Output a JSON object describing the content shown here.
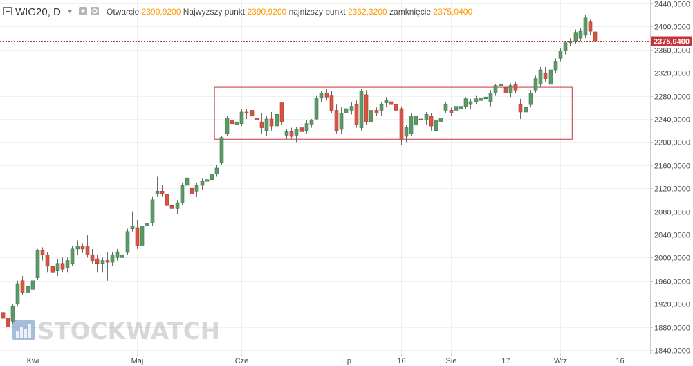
{
  "header": {
    "symbol": "WIG20",
    "interval": "D",
    "open_label": "Otwarcie",
    "open_value": "2390,9200",
    "high_label": "Najwyzszy punkt",
    "high_value": "2390,9200",
    "low_label": "najnizszy punkt",
    "low_value": "2362,3200",
    "close_label": "zamknięcie",
    "close_value": "2375,0400"
  },
  "last_price_label": "2375,0400",
  "watermark": "STOCKWATCH",
  "colors": {
    "up": "#5b9a68",
    "down": "#d75442",
    "wick": "#6b6b6b",
    "box": "#c8343c",
    "last_price": "#c8343c",
    "grid": "#eef0f2",
    "accent_values": "#ff9a00"
  },
  "chart_data": {
    "type": "candlestick",
    "title": "",
    "xlabel": "",
    "ylabel": "",
    "ylim": [
      1840,
      2440
    ],
    "grid": true,
    "y_ticks": [
      1840,
      1880,
      1920,
      1960,
      2000,
      2040,
      2080,
      2120,
      2160,
      2200,
      2240,
      2280,
      2320,
      2360,
      2400,
      2440
    ],
    "y_tick_labels": [
      "1840,0000",
      "1880,0000",
      "1920,0000",
      "1960,0000",
      "2000,0000",
      "2040,0000",
      "2080,0000",
      "2120,0000",
      "2160,0000",
      "2200,0000",
      "2240,0000",
      "2280,0000",
      "2320,0000",
      "2360,0000",
      "2400,0000",
      "2440,0000"
    ],
    "x_ticks": [
      {
        "label": "Kwi",
        "index": 6
      },
      {
        "label": "Maj",
        "index": 27
      },
      {
        "label": "Cze",
        "index": 48
      },
      {
        "label": "Lip",
        "index": 69
      },
      {
        "label": "16",
        "index": 80
      },
      {
        "label": "Sie",
        "index": 90
      },
      {
        "label": "17",
        "index": 101
      },
      {
        "label": "Wrz",
        "index": 112
      },
      {
        "label": "16",
        "index": 124
      }
    ],
    "last_price": 2375.04,
    "range_box": {
      "start_index": 43,
      "end_index": 114,
      "low": 2205,
      "high": 2295
    },
    "candles": [
      {
        "o": 1905,
        "h": 1915,
        "l": 1880,
        "c": 1895
      },
      {
        "o": 1895,
        "h": 1905,
        "l": 1870,
        "c": 1880
      },
      {
        "o": 1890,
        "h": 1920,
        "l": 1885,
        "c": 1915
      },
      {
        "o": 1920,
        "h": 1960,
        "l": 1915,
        "c": 1955
      },
      {
        "o": 1960,
        "h": 1968,
        "l": 1935,
        "c": 1940
      },
      {
        "o": 1940,
        "h": 1955,
        "l": 1930,
        "c": 1950
      },
      {
        "o": 1945,
        "h": 1965,
        "l": 1940,
        "c": 1960
      },
      {
        "o": 1965,
        "h": 2015,
        "l": 1962,
        "c": 2012
      },
      {
        "o": 2012,
        "h": 2018,
        "l": 1995,
        "c": 2005
      },
      {
        "o": 2005,
        "h": 2010,
        "l": 1975,
        "c": 1985
      },
      {
        "o": 1985,
        "h": 1995,
        "l": 1970,
        "c": 1975
      },
      {
        "o": 1978,
        "h": 1998,
        "l": 1968,
        "c": 1990
      },
      {
        "o": 1990,
        "h": 2000,
        "l": 1975,
        "c": 1980
      },
      {
        "o": 1982,
        "h": 2000,
        "l": 1975,
        "c": 1995
      },
      {
        "o": 1990,
        "h": 2020,
        "l": 1985,
        "c": 2015
      },
      {
        "o": 2015,
        "h": 2030,
        "l": 2005,
        "c": 2020
      },
      {
        "o": 2020,
        "h": 2025,
        "l": 2008,
        "c": 2015
      },
      {
        "o": 2020,
        "h": 2040,
        "l": 2000,
        "c": 2005
      },
      {
        "o": 2005,
        "h": 2015,
        "l": 1990,
        "c": 1995
      },
      {
        "o": 1998,
        "h": 2005,
        "l": 1975,
        "c": 1990
      },
      {
        "o": 1990,
        "h": 2000,
        "l": 1975,
        "c": 1995
      },
      {
        "o": 1995,
        "h": 2010,
        "l": 1960,
        "c": 1992
      },
      {
        "o": 1992,
        "h": 2010,
        "l": 1985,
        "c": 2005
      },
      {
        "o": 2000,
        "h": 2015,
        "l": 1995,
        "c": 2010
      },
      {
        "o": 2000,
        "h": 2015,
        "l": 1995,
        "c": 2005
      },
      {
        "o": 2010,
        "h": 2050,
        "l": 2005,
        "c": 2045
      },
      {
        "o": 2050,
        "h": 2080,
        "l": 2045,
        "c": 2055
      },
      {
        "o": 2052,
        "h": 2065,
        "l": 2015,
        "c": 2020
      },
      {
        "o": 2020,
        "h": 2060,
        "l": 2015,
        "c": 2055
      },
      {
        "o": 2055,
        "h": 2070,
        "l": 2045,
        "c": 2060
      },
      {
        "o": 2060,
        "h": 2105,
        "l": 2055,
        "c": 2100
      },
      {
        "o": 2110,
        "h": 2140,
        "l": 2105,
        "c": 2115
      },
      {
        "o": 2115,
        "h": 2125,
        "l": 2105,
        "c": 2110
      },
      {
        "o": 2110,
        "h": 2120,
        "l": 2085,
        "c": 2090
      },
      {
        "o": 2090,
        "h": 2100,
        "l": 2050,
        "c": 2085
      },
      {
        "o": 2085,
        "h": 2100,
        "l": 2075,
        "c": 2095
      },
      {
        "o": 2095,
        "h": 2130,
        "l": 2090,
        "c": 2125
      },
      {
        "o": 2125,
        "h": 2155,
        "l": 2118,
        "c": 2138
      },
      {
        "o": 2120,
        "h": 2130,
        "l": 2095,
        "c": 2110
      },
      {
        "o": 2115,
        "h": 2130,
        "l": 2105,
        "c": 2125
      },
      {
        "o": 2125,
        "h": 2138,
        "l": 2118,
        "c": 2132
      },
      {
        "o": 2132,
        "h": 2142,
        "l": 2128,
        "c": 2135
      },
      {
        "o": 2135,
        "h": 2150,
        "l": 2125,
        "c": 2145
      },
      {
        "o": 2145,
        "h": 2160,
        "l": 2140,
        "c": 2155
      },
      {
        "o": 2165,
        "h": 2210,
        "l": 2160,
        "c": 2208
      },
      {
        "o": 2215,
        "h": 2245,
        "l": 2210,
        "c": 2242
      },
      {
        "o": 2238,
        "h": 2250,
        "l": 2228,
        "c": 2232
      },
      {
        "o": 2230,
        "h": 2262,
        "l": 2228,
        "c": 2235
      },
      {
        "o": 2232,
        "h": 2258,
        "l": 2228,
        "c": 2252
      },
      {
        "o": 2252,
        "h": 2258,
        "l": 2240,
        "c": 2250
      },
      {
        "o": 2255,
        "h": 2272,
        "l": 2240,
        "c": 2245
      },
      {
        "o": 2242,
        "h": 2252,
        "l": 2230,
        "c": 2238
      },
      {
        "o": 2235,
        "h": 2250,
        "l": 2215,
        "c": 2225
      },
      {
        "o": 2220,
        "h": 2245,
        "l": 2210,
        "c": 2240
      },
      {
        "o": 2240,
        "h": 2252,
        "l": 2220,
        "c": 2228
      },
      {
        "o": 2228,
        "h": 2252,
        "l": 2222,
        "c": 2248
      },
      {
        "o": 2268,
        "h": 2270,
        "l": 2230,
        "c": 2235
      },
      {
        "o": 2212,
        "h": 2222,
        "l": 2205,
        "c": 2218
      },
      {
        "o": 2218,
        "h": 2225,
        "l": 2205,
        "c": 2210
      },
      {
        "o": 2212,
        "h": 2226,
        "l": 2200,
        "c": 2222
      },
      {
        "o": 2225,
        "h": 2230,
        "l": 2190,
        "c": 2218
      },
      {
        "o": 2220,
        "h": 2238,
        "l": 2215,
        "c": 2232
      },
      {
        "o": 2230,
        "h": 2240,
        "l": 2225,
        "c": 2238
      },
      {
        "o": 2240,
        "h": 2280,
        "l": 2238,
        "c": 2276
      },
      {
        "o": 2276,
        "h": 2288,
        "l": 2270,
        "c": 2285
      },
      {
        "o": 2285,
        "h": 2292,
        "l": 2272,
        "c": 2278
      },
      {
        "o": 2280,
        "h": 2288,
        "l": 2250,
        "c": 2255
      },
      {
        "o": 2255,
        "h": 2265,
        "l": 2215,
        "c": 2220
      },
      {
        "o": 2222,
        "h": 2260,
        "l": 2215,
        "c": 2250
      },
      {
        "o": 2250,
        "h": 2262,
        "l": 2245,
        "c": 2258
      },
      {
        "o": 2255,
        "h": 2270,
        "l": 2248,
        "c": 2262
      },
      {
        "o": 2265,
        "h": 2272,
        "l": 2225,
        "c": 2230
      },
      {
        "o": 2225,
        "h": 2292,
        "l": 2220,
        "c": 2288
      },
      {
        "o": 2282,
        "h": 2290,
        "l": 2230,
        "c": 2235
      },
      {
        "o": 2235,
        "h": 2262,
        "l": 2230,
        "c": 2255
      },
      {
        "o": 2255,
        "h": 2260,
        "l": 2245,
        "c": 2250
      },
      {
        "o": 2255,
        "h": 2270,
        "l": 2245,
        "c": 2265
      },
      {
        "o": 2268,
        "h": 2278,
        "l": 2260,
        "c": 2272
      },
      {
        "o": 2270,
        "h": 2280,
        "l": 2262,
        "c": 2265
      },
      {
        "o": 2265,
        "h": 2275,
        "l": 2250,
        "c": 2255
      },
      {
        "o": 2258,
        "h": 2262,
        "l": 2195,
        "c": 2205
      },
      {
        "o": 2210,
        "h": 2230,
        "l": 2200,
        "c": 2225
      },
      {
        "o": 2215,
        "h": 2250,
        "l": 2210,
        "c": 2245
      },
      {
        "o": 2230,
        "h": 2250,
        "l": 2225,
        "c": 2245
      },
      {
        "o": 2240,
        "h": 2250,
        "l": 2230,
        "c": 2238
      },
      {
        "o": 2238,
        "h": 2252,
        "l": 2230,
        "c": 2248
      },
      {
        "o": 2245,
        "h": 2250,
        "l": 2220,
        "c": 2228
      },
      {
        "o": 2220,
        "h": 2245,
        "l": 2212,
        "c": 2238
      },
      {
        "o": 2235,
        "h": 2248,
        "l": 2222,
        "c": 2242
      },
      {
        "o": 2255,
        "h": 2270,
        "l": 2250,
        "c": 2265
      },
      {
        "o": 2255,
        "h": 2260,
        "l": 2245,
        "c": 2250
      },
      {
        "o": 2255,
        "h": 2268,
        "l": 2250,
        "c": 2262
      },
      {
        "o": 2258,
        "h": 2268,
        "l": 2250,
        "c": 2262
      },
      {
        "o": 2262,
        "h": 2278,
        "l": 2258,
        "c": 2275
      },
      {
        "o": 2265,
        "h": 2275,
        "l": 2258,
        "c": 2270
      },
      {
        "o": 2270,
        "h": 2280,
        "l": 2265,
        "c": 2275
      },
      {
        "o": 2272,
        "h": 2282,
        "l": 2268,
        "c": 2276
      },
      {
        "o": 2275,
        "h": 2282,
        "l": 2268,
        "c": 2278
      },
      {
        "o": 2270,
        "h": 2290,
        "l": 2262,
        "c": 2285
      },
      {
        "o": 2285,
        "h": 2300,
        "l": 2280,
        "c": 2298
      },
      {
        "o": 2298,
        "h": 2305,
        "l": 2290,
        "c": 2300
      },
      {
        "o": 2295,
        "h": 2300,
        "l": 2280,
        "c": 2285
      },
      {
        "o": 2285,
        "h": 2302,
        "l": 2278,
        "c": 2298
      },
      {
        "o": 2300,
        "h": 2305,
        "l": 2285,
        "c": 2290
      },
      {
        "o": 2265,
        "h": 2275,
        "l": 2240,
        "c": 2252
      },
      {
        "o": 2252,
        "h": 2265,
        "l": 2245,
        "c": 2260
      },
      {
        "o": 2265,
        "h": 2290,
        "l": 2260,
        "c": 2285
      },
      {
        "o": 2290,
        "h": 2315,
        "l": 2285,
        "c": 2310
      },
      {
        "o": 2300,
        "h": 2330,
        "l": 2295,
        "c": 2325
      },
      {
        "o": 2320,
        "h": 2330,
        "l": 2305,
        "c": 2310
      },
      {
        "o": 2300,
        "h": 2328,
        "l": 2295,
        "c": 2325
      },
      {
        "o": 2325,
        "h": 2345,
        "l": 2320,
        "c": 2340
      },
      {
        "o": 2345,
        "h": 2362,
        "l": 2340,
        "c": 2358
      },
      {
        "o": 2358,
        "h": 2375,
        "l": 2352,
        "c": 2372
      },
      {
        "o": 2372,
        "h": 2380,
        "l": 2366,
        "c": 2375
      },
      {
        "o": 2375,
        "h": 2395,
        "l": 2370,
        "c": 2390
      },
      {
        "o": 2380,
        "h": 2398,
        "l": 2375,
        "c": 2392
      },
      {
        "o": 2385,
        "h": 2420,
        "l": 2380,
        "c": 2415
      },
      {
        "o": 2408,
        "h": 2412,
        "l": 2385,
        "c": 2392
      },
      {
        "o": 2390.92,
        "h": 2390.92,
        "l": 2362.32,
        "c": 2375.04
      }
    ]
  }
}
